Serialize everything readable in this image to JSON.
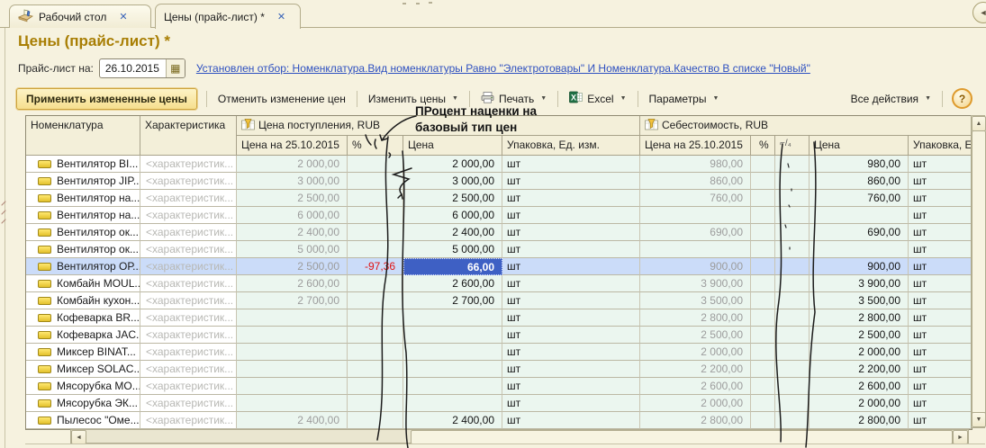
{
  "tabs": [
    {
      "label": "Рабочий стол"
    },
    {
      "label": "Цены (прайс-лист) *"
    }
  ],
  "page": {
    "title": "Цены (прайс-лист) *"
  },
  "filter_bar": {
    "date_label": "Прайс-лист на:",
    "date_value": "26.10.2015",
    "filter_link": "Установлен отбор: Номенклатура.Вид номенклатуры Равно \"Электротовары\" И Номенклатура.Качество В списке \"Новый\""
  },
  "toolbar": {
    "apply": "Применить измененные цены",
    "cancel": "Отменить изменение цен",
    "change_prices": "Изменить цены",
    "print": "Печать",
    "excel": "Excel",
    "parameters": "Параметры",
    "all_actions": "Все действия",
    "help": "?"
  },
  "annotation": {
    "line1": "ПРоцент наценки на",
    "line2": "базовый тип цен"
  },
  "table": {
    "headers": {
      "nomenclature": "Номенклатура",
      "characteristic": "Характеристика",
      "group1": "Цена поступления, RUB",
      "group2": "Себестоимость, RUB",
      "old_price": "Цена на 25.10.2015",
      "percent": "%",
      "formula_glyph": "⌐/₄",
      "price": "Цена",
      "pack1": "Упаковка, Ед. изм.",
      "pack2": "Упаковка, Ед"
    },
    "selected_index": 6,
    "rows": [
      {
        "name": "Вентилятор BI...",
        "char": "<характеристик...",
        "p_old": "2 000,00",
        "p_pct": "",
        "p_price": "2 000,00",
        "p_unit": "шт",
        "c_old": "980,00",
        "c_price": "980,00",
        "c_unit": "шт"
      },
      {
        "name": "Вентилятор JIP...",
        "char": "<характеристик...",
        "p_old": "3 000,00",
        "p_pct": "",
        "p_price": "3 000,00",
        "p_unit": "шт",
        "c_old": "860,00",
        "c_price": "860,00",
        "c_unit": "шт"
      },
      {
        "name": "Вентилятор на...",
        "char": "<характеристик...",
        "p_old": "2 500,00",
        "p_pct": "",
        "p_price": "2 500,00",
        "p_unit": "шт",
        "c_old": "760,00",
        "c_price": "760,00",
        "c_unit": "шт"
      },
      {
        "name": "Вентилятор на...",
        "char": "<характеристик...",
        "p_old": "6 000,00",
        "p_pct": "",
        "p_price": "6 000,00",
        "p_unit": "шт",
        "c_old": "",
        "c_price": "",
        "c_unit": "шт"
      },
      {
        "name": "Вентилятор ок...",
        "char": "<характеристик...",
        "p_old": "2 400,00",
        "p_pct": "",
        "p_price": "2 400,00",
        "p_unit": "шт",
        "c_old": "690,00",
        "c_price": "690,00",
        "c_unit": "шт"
      },
      {
        "name": "Вентилятор ок...",
        "char": "<характеристик...",
        "p_old": "5 000,00",
        "p_pct": "",
        "p_price": "5 000,00",
        "p_unit": "шт",
        "c_old": "",
        "c_price": "",
        "c_unit": "шт"
      },
      {
        "name": "Вентилятор ОР...",
        "char": "<характеристик...",
        "p_old": "2 500,00",
        "p_pct": "-97,36",
        "p_price": "66,00",
        "p_unit": "шт",
        "c_old": "900,00",
        "c_price": "900,00",
        "c_unit": "шт"
      },
      {
        "name": "Комбайн MOUL...",
        "char": "<характеристик...",
        "p_old": "2 600,00",
        "p_pct": "",
        "p_price": "2 600,00",
        "p_unit": "шт",
        "c_old": "3 900,00",
        "c_price": "3 900,00",
        "c_unit": "шт"
      },
      {
        "name": "Комбайн кухон...",
        "char": "<характеристик...",
        "p_old": "2 700,00",
        "p_pct": "",
        "p_price": "2 700,00",
        "p_unit": "шт",
        "c_old": "3 500,00",
        "c_price": "3 500,00",
        "c_unit": "шт"
      },
      {
        "name": "Кофеварка BR...",
        "char": "<характеристик...",
        "p_old": "",
        "p_pct": "",
        "p_price": "",
        "p_unit": "шт",
        "c_old": "2 800,00",
        "c_price": "2 800,00",
        "c_unit": "шт"
      },
      {
        "name": "Кофеварка JAC...",
        "char": "<характеристик...",
        "p_old": "",
        "p_pct": "",
        "p_price": "",
        "p_unit": "шт",
        "c_old": "2 500,00",
        "c_price": "2 500,00",
        "c_unit": "шт"
      },
      {
        "name": "Миксер BINAT...",
        "char": "<характеристик...",
        "p_old": "",
        "p_pct": "",
        "p_price": "",
        "p_unit": "шт",
        "c_old": "2 000,00",
        "c_price": "2 000,00",
        "c_unit": "шт"
      },
      {
        "name": "Миксер SOLAC...",
        "char": "<характеристик...",
        "p_old": "",
        "p_pct": "",
        "p_price": "",
        "p_unit": "шт",
        "c_old": "2 200,00",
        "c_price": "2 200,00",
        "c_unit": "шт"
      },
      {
        "name": "Мясорубка МО...",
        "char": "<характеристик...",
        "p_old": "",
        "p_pct": "",
        "p_price": "",
        "p_unit": "шт",
        "c_old": "2 600,00",
        "c_price": "2 600,00",
        "c_unit": "шт"
      },
      {
        "name": "Мясорубка ЭК...",
        "char": "<характеристик...",
        "p_old": "",
        "p_pct": "",
        "p_price": "",
        "p_unit": "шт",
        "c_old": "2 000,00",
        "c_price": "2 000,00",
        "c_unit": "шт"
      },
      {
        "name": "Пылесос \"Оме...",
        "char": "<характеристик...",
        "p_old": "2 400,00",
        "p_pct": "",
        "p_price": "2 400,00",
        "p_unit": "шт",
        "c_old": "2 800,00",
        "c_price": "2 800,00",
        "c_unit": "шт"
      }
    ]
  },
  "ui": {
    "dropdown": "▼",
    "close": "✕",
    "back": "◄",
    "up": "▲",
    "down": "▼",
    "left": "◄",
    "right": "►",
    "date_picker": "▦"
  },
  "colors": {
    "title": "#a87e04",
    "link": "#2e50c0",
    "selected_row": "#cbdcf9",
    "active_cell": "#3e60c4",
    "negative_pct": "#e01414",
    "cell_tint": "#ebf6ef",
    "background": "#f6f2df"
  }
}
